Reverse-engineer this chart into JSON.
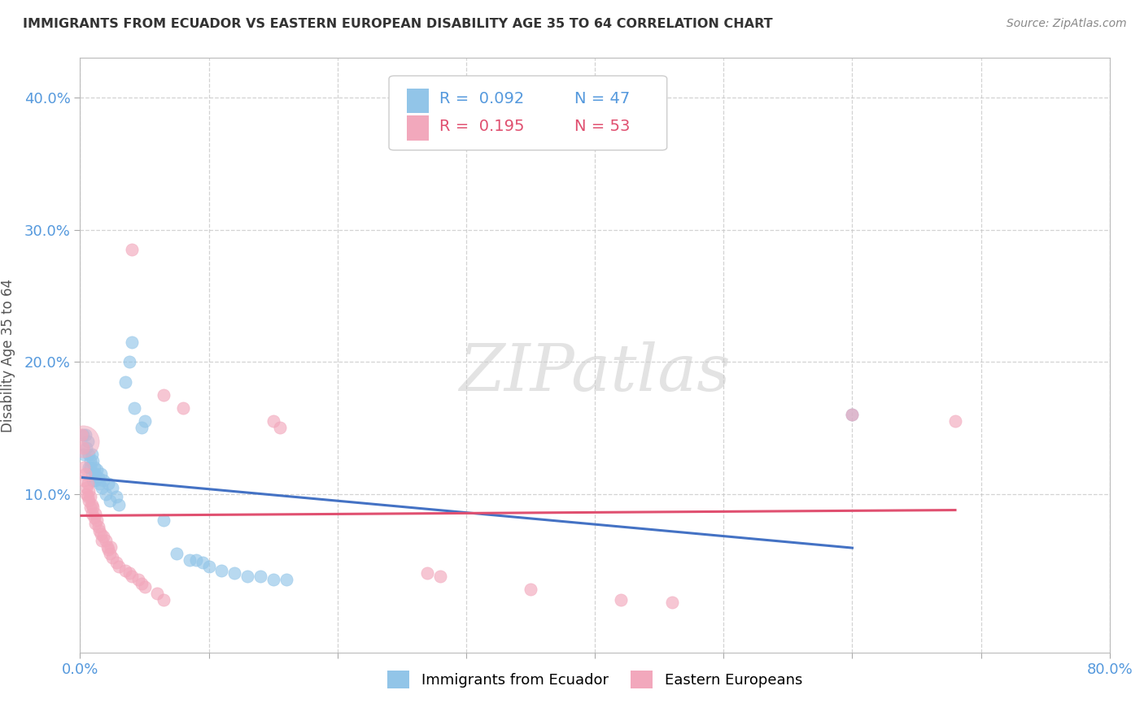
{
  "title": "IMMIGRANTS FROM ECUADOR VS EASTERN EUROPEAN DISABILITY AGE 35 TO 64 CORRELATION CHART",
  "source": "Source: ZipAtlas.com",
  "ylabel": "Disability Age 35 to 64",
  "xlim": [
    0.0,
    0.8
  ],
  "ylim": [
    -0.02,
    0.43
  ],
  "xticks": [
    0.0,
    0.1,
    0.2,
    0.3,
    0.4,
    0.5,
    0.6,
    0.7,
    0.8
  ],
  "xticklabels": [
    "0.0%",
    "",
    "",
    "",
    "",
    "",
    "",
    "",
    "80.0%"
  ],
  "yticks": [
    0.1,
    0.2,
    0.3,
    0.4
  ],
  "yticklabels": [
    "10.0%",
    "20.0%",
    "30.0%",
    "40.0%"
  ],
  "blue_color": "#92C5E8",
  "pink_color": "#F2A8BC",
  "blue_line_color": "#4472C4",
  "pink_line_color": "#E05070",
  "legend_R1": "R = 0.092",
  "legend_N1": "N = 47",
  "legend_R2": "R = 0.195",
  "legend_N2": "N = 53",
  "watermark_text": "ZIPatlas",
  "grid_color": "#C8C8C8",
  "blue_scatter": [
    [
      0.002,
      0.145
    ],
    [
      0.003,
      0.13
    ],
    [
      0.004,
      0.145
    ],
    [
      0.005,
      0.135
    ],
    [
      0.006,
      0.14
    ],
    [
      0.007,
      0.12
    ],
    [
      0.007,
      0.13
    ],
    [
      0.008,
      0.125
    ],
    [
      0.008,
      0.12
    ],
    [
      0.009,
      0.13
    ],
    [
      0.009,
      0.115
    ],
    [
      0.01,
      0.125
    ],
    [
      0.01,
      0.11
    ],
    [
      0.011,
      0.12
    ],
    [
      0.012,
      0.115
    ],
    [
      0.012,
      0.11
    ],
    [
      0.013,
      0.118
    ],
    [
      0.014,
      0.112
    ],
    [
      0.015,
      0.108
    ],
    [
      0.016,
      0.115
    ],
    [
      0.017,
      0.105
    ],
    [
      0.018,
      0.11
    ],
    [
      0.02,
      0.1
    ],
    [
      0.022,
      0.108
    ],
    [
      0.023,
      0.095
    ],
    [
      0.025,
      0.105
    ],
    [
      0.028,
      0.098
    ],
    [
      0.03,
      0.092
    ],
    [
      0.035,
      0.185
    ],
    [
      0.038,
      0.2
    ],
    [
      0.04,
      0.215
    ],
    [
      0.042,
      0.165
    ],
    [
      0.048,
      0.15
    ],
    [
      0.05,
      0.155
    ],
    [
      0.065,
      0.08
    ],
    [
      0.075,
      0.055
    ],
    [
      0.085,
      0.05
    ],
    [
      0.09,
      0.05
    ],
    [
      0.095,
      0.048
    ],
    [
      0.1,
      0.045
    ],
    [
      0.11,
      0.042
    ],
    [
      0.12,
      0.04
    ],
    [
      0.13,
      0.038
    ],
    [
      0.14,
      0.038
    ],
    [
      0.15,
      0.035
    ],
    [
      0.16,
      0.035
    ],
    [
      0.6,
      0.16
    ]
  ],
  "pink_scatter": [
    [
      0.001,
      0.145
    ],
    [
      0.002,
      0.135
    ],
    [
      0.003,
      0.12
    ],
    [
      0.003,
      0.11
    ],
    [
      0.004,
      0.115
    ],
    [
      0.005,
      0.105
    ],
    [
      0.005,
      0.1
    ],
    [
      0.006,
      0.108
    ],
    [
      0.006,
      0.098
    ],
    [
      0.007,
      0.102
    ],
    [
      0.007,
      0.095
    ],
    [
      0.008,
      0.098
    ],
    [
      0.008,
      0.09
    ],
    [
      0.009,
      0.092
    ],
    [
      0.009,
      0.085
    ],
    [
      0.01,
      0.09
    ],
    [
      0.011,
      0.082
    ],
    [
      0.012,
      0.085
    ],
    [
      0.012,
      0.078
    ],
    [
      0.013,
      0.08
    ],
    [
      0.014,
      0.075
    ],
    [
      0.015,
      0.072
    ],
    [
      0.016,
      0.07
    ],
    [
      0.017,
      0.065
    ],
    [
      0.018,
      0.068
    ],
    [
      0.02,
      0.065
    ],
    [
      0.021,
      0.06
    ],
    [
      0.022,
      0.058
    ],
    [
      0.023,
      0.055
    ],
    [
      0.024,
      0.06
    ],
    [
      0.025,
      0.052
    ],
    [
      0.028,
      0.048
    ],
    [
      0.03,
      0.045
    ],
    [
      0.035,
      0.042
    ],
    [
      0.038,
      0.04
    ],
    [
      0.04,
      0.038
    ],
    [
      0.045,
      0.035
    ],
    [
      0.048,
      0.032
    ],
    [
      0.05,
      0.03
    ],
    [
      0.06,
      0.025
    ],
    [
      0.065,
      0.02
    ],
    [
      0.04,
      0.285
    ],
    [
      0.065,
      0.175
    ],
    [
      0.08,
      0.165
    ],
    [
      0.15,
      0.155
    ],
    [
      0.155,
      0.15
    ],
    [
      0.27,
      0.04
    ],
    [
      0.28,
      0.038
    ],
    [
      0.35,
      0.028
    ],
    [
      0.42,
      0.02
    ],
    [
      0.46,
      0.018
    ],
    [
      0.6,
      0.16
    ],
    [
      0.68,
      0.155
    ]
  ],
  "title_fontsize": 11.5,
  "source_fontsize": 10,
  "tick_fontsize": 13,
  "ylabel_fontsize": 12
}
